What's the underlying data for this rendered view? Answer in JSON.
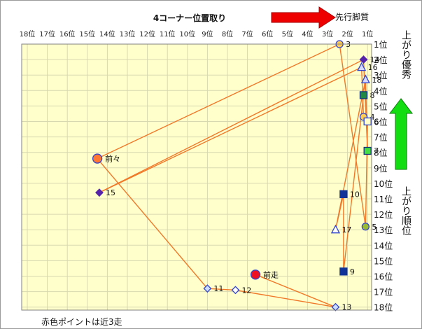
{
  "chart_data": {
    "type": "scatter",
    "title": "4コーナー位置取り",
    "arrow_right_label": "先行脚質",
    "arrow_up_label": "上がり優秀",
    "y_axis_label": "上がり順位",
    "footnote": "赤色ポイントは近3走",
    "x_ticks": [
      "18位",
      "17位",
      "16位",
      "15位",
      "14位",
      "13位",
      "12位",
      "11位",
      "10位",
      "9位",
      "8位",
      "7位",
      "6位",
      "5位",
      "4位",
      "3位",
      "2位",
      "1位"
    ],
    "y_ticks": [
      "1位",
      "2位",
      "3位",
      "4位",
      "5位",
      "6位",
      "7位",
      "8位",
      "9位",
      "10位",
      "11位",
      "12位",
      "13位",
      "14位",
      "15位",
      "16位",
      "17位",
      "18位"
    ],
    "xlim": [
      18,
      1
    ],
    "ylim": [
      1,
      18
    ],
    "colors": {
      "plot_bg": "#ffffcc",
      "line": "#f07828",
      "grid": "#d8d8b0",
      "arrow_red": "#ee0000",
      "arrow_green": "#11dd11"
    },
    "path_order": [
      "前走",
      "13",
      "12",
      "11",
      "前々",
      "3",
      "5",
      "6",
      "4",
      "16",
      "15",
      "14",
      "7",
      "18",
      "17",
      "10",
      "9",
      "8"
    ],
    "points": [
      {
        "label": "3",
        "x": 2.4,
        "y": 1.0,
        "shape": "circle",
        "fill": "#ffcc55",
        "stroke": "#3344cc"
      },
      {
        "label": "14",
        "x": 1.2,
        "y": 2.0,
        "shape": "diamond",
        "fill": "#5522aa",
        "stroke": "#5522aa"
      },
      {
        "label": "16",
        "x": 1.3,
        "y": 2.5,
        "shape": "triangle",
        "fill": "#d8d8ff",
        "stroke": "#3344cc"
      },
      {
        "label": "18",
        "x": 1.1,
        "y": 3.3,
        "shape": "triangle",
        "fill": "#d8d8ff",
        "stroke": "#3344cc"
      },
      {
        "label": "8",
        "x": 1.2,
        "y": 4.3,
        "shape": "square",
        "fill": "#228844",
        "stroke": "#113377"
      },
      {
        "label": "4",
        "x": 1.2,
        "y": 5.7,
        "shape": "circle",
        "fill": "#ffcc55",
        "stroke": "#3344cc"
      },
      {
        "label": "6",
        "x": 1.0,
        "y": 6.0,
        "shape": "square",
        "fill": "#ffffcc",
        "stroke": "#3344cc"
      },
      {
        "label": "7",
        "x": 1.0,
        "y": 7.9,
        "shape": "square",
        "fill": "#44dd44",
        "stroke": "#113377"
      },
      {
        "label": "前々",
        "x": 14.5,
        "y": 8.4,
        "shape": "circle",
        "fill": "#ff7733",
        "stroke": "#3344cc"
      },
      {
        "label": "15",
        "x": 14.4,
        "y": 10.6,
        "shape": "diamond",
        "fill": "#5522aa",
        "stroke": "#5522aa"
      },
      {
        "label": "10",
        "x": 2.2,
        "y": 10.7,
        "shape": "square",
        "fill": "#113399",
        "stroke": "#113399"
      },
      {
        "label": "5",
        "x": 1.1,
        "y": 12.8,
        "shape": "circle",
        "fill": "#99bb33",
        "stroke": "#3344cc"
      },
      {
        "label": "17",
        "x": 2.6,
        "y": 13.0,
        "shape": "triangle",
        "fill": "#ffffff",
        "stroke": "#3344cc"
      },
      {
        "label": "前走",
        "x": 6.6,
        "y": 15.9,
        "shape": "circle",
        "fill": "#ee1122",
        "stroke": "#3344cc"
      },
      {
        "label": "9",
        "x": 2.2,
        "y": 15.7,
        "shape": "square",
        "fill": "#113399",
        "stroke": "#113399"
      },
      {
        "label": "11",
        "x": 9.0,
        "y": 16.8,
        "shape": "diamond",
        "fill": "#ccddff",
        "stroke": "#3344cc"
      },
      {
        "label": "12",
        "x": 7.6,
        "y": 16.9,
        "shape": "diamond",
        "fill": "#ffffff",
        "stroke": "#3344cc"
      },
      {
        "label": "13",
        "x": 2.6,
        "y": 18.0,
        "shape": "diamond",
        "fill": "#ccddff",
        "stroke": "#3344cc"
      }
    ]
  }
}
